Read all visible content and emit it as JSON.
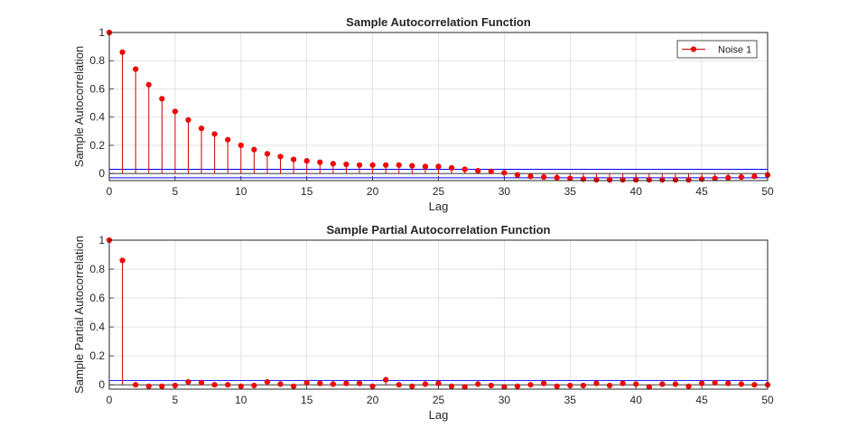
{
  "chart_data": [
    {
      "type": "stem",
      "title": "Sample Autocorrelation Function",
      "xlabel": "Lag",
      "ylabel": "Sample Autocorrelation",
      "xlim": [
        0,
        50
      ],
      "ylim": [
        -0.05,
        1
      ],
      "xticks": [
        "0",
        "5",
        "10",
        "15",
        "20",
        "25",
        "30",
        "35",
        "40",
        "45",
        "50"
      ],
      "yticks": [
        "0",
        "0.2",
        "0.4",
        "0.6",
        "0.8",
        "1"
      ],
      "grid": true,
      "legend": {
        "position": "top-right",
        "entries": [
          "Noise 1"
        ]
      },
      "colors": {
        "stem": "#cc0000",
        "marker": "#ff0000",
        "bounds": "#0000ff"
      },
      "confidence_bounds": [
        0.03,
        -0.03
      ],
      "series": [
        {
          "name": "Noise 1",
          "x": [
            0,
            1,
            2,
            3,
            4,
            5,
            6,
            7,
            8,
            9,
            10,
            11,
            12,
            13,
            14,
            15,
            16,
            17,
            18,
            19,
            20,
            21,
            22,
            23,
            24,
            25,
            26,
            27,
            28,
            29,
            30,
            31,
            32,
            33,
            34,
            35,
            36,
            37,
            38,
            39,
            40,
            41,
            42,
            43,
            44,
            45,
            46,
            47,
            48,
            49,
            50
          ],
          "values": [
            1,
            0.86,
            0.74,
            0.63,
            0.53,
            0.44,
            0.38,
            0.32,
            0.28,
            0.24,
            0.2,
            0.17,
            0.14,
            0.12,
            0.1,
            0.09,
            0.08,
            0.07,
            0.065,
            0.06,
            0.06,
            0.06,
            0.06,
            0.055,
            0.05,
            0.05,
            0.04,
            0.03,
            0.02,
            0.015,
            0.005,
            -0.01,
            -0.02,
            -0.025,
            -0.03,
            -0.035,
            -0.04,
            -0.045,
            -0.045,
            -0.045,
            -0.045,
            -0.045,
            -0.045,
            -0.045,
            -0.045,
            -0.04,
            -0.035,
            -0.03,
            -0.025,
            -0.02,
            -0.01
          ]
        }
      ]
    },
    {
      "type": "stem",
      "title": "Sample Partial Autocorrelation Function",
      "xlabel": "Lag",
      "ylabel": "Sample Partial Autocorrelation",
      "xlim": [
        0,
        50
      ],
      "ylim": [
        -0.03,
        1
      ],
      "xticks": [
        "0",
        "5",
        "10",
        "15",
        "20",
        "25",
        "30",
        "35",
        "40",
        "45",
        "50"
      ],
      "yticks": [
        "0",
        "0.2",
        "0.4",
        "0.6",
        "0.8",
        "1"
      ],
      "grid": true,
      "colors": {
        "stem": "#cc0000",
        "marker": "#ff0000",
        "bounds": "#0000ff"
      },
      "confidence_bounds": [
        0.03,
        -0.03
      ],
      "series": [
        {
          "x": [
            0,
            1,
            2,
            3,
            4,
            5,
            6,
            7,
            8,
            9,
            10,
            11,
            12,
            13,
            14,
            15,
            16,
            17,
            18,
            19,
            20,
            21,
            22,
            23,
            24,
            25,
            26,
            27,
            28,
            29,
            30,
            31,
            32,
            33,
            34,
            35,
            36,
            37,
            38,
            39,
            40,
            41,
            42,
            43,
            44,
            45,
            46,
            47,
            48,
            49,
            50
          ],
          "values": [
            1,
            0.86,
            0,
            -0.01,
            -0.01,
            -0.005,
            0.02,
            0.015,
            0,
            0,
            -0.01,
            -0.005,
            0.02,
            0.005,
            -0.01,
            0.015,
            0.01,
            0.005,
            0.01,
            0.01,
            -0.01,
            0.035,
            0,
            -0.01,
            0.005,
            0.01,
            -0.01,
            -0.015,
            0.005,
            -0.005,
            -0.015,
            -0.01,
            0,
            0.01,
            -0.01,
            -0.005,
            -0.005,
            0.01,
            -0.005,
            0.01,
            0.005,
            -0.015,
            0.005,
            0.005,
            -0.01,
            0.01,
            0.015,
            0.01,
            0.005,
            0,
            0
          ]
        }
      ]
    }
  ]
}
